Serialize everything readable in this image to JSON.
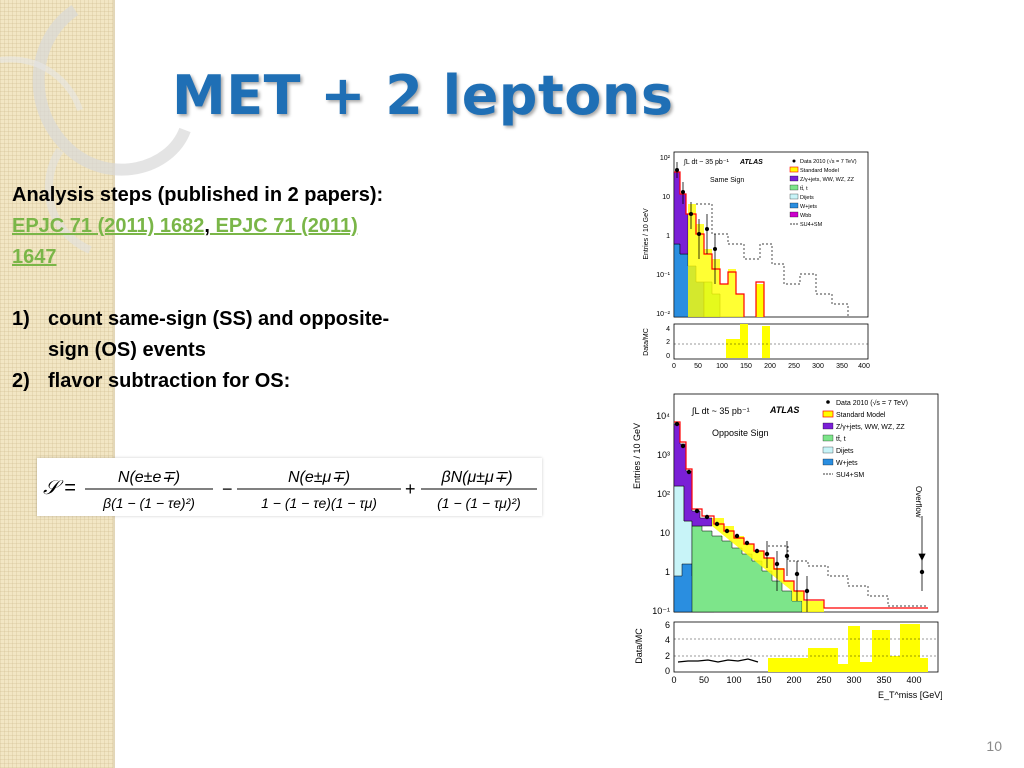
{
  "slide": {
    "title": "MET + 2 leptons",
    "page_number": "10"
  },
  "body": {
    "intro": "Analysis steps (published in 2 papers):",
    "link1": "EPJC 71 (2011) 1682",
    "separator": ",",
    "link2_line1": " EPJC 71 (2011)",
    "link2_line2": "1647",
    "steps": [
      {
        "marker": "1)",
        "line1": "count same-sign (SS) and opposite-",
        "line2": "sign (OS) events"
      },
      {
        "marker": "2)",
        "line1": " flavor subtraction for OS:"
      }
    ]
  },
  "formula": {
    "lhs": "𝒮 =",
    "t1_num": "N(e±e∓)",
    "t1_den": "β(1 − (1 − τe)²)",
    "op1": "−",
    "t2_num": "N(e±μ∓)",
    "t2_den": "1 − (1 − τe)(1 − τμ)",
    "op2": "+",
    "t3_num": "βN(μ±μ∓)",
    "t3_den": "(1 − (1 − τμ)²)"
  },
  "plots": {
    "ss": {
      "lumi": "∫L dt ~ 35 pb⁻¹",
      "experiment": "ATLAS",
      "region": "Same Sign",
      "ylabel": "Entries / 10 GeV",
      "ratio_label": "Data/MC",
      "y_ticks": [
        "10²",
        "10",
        "1",
        "10⁻¹",
        "10⁻²"
      ],
      "ratio_ticks": [
        "4",
        "2",
        "0"
      ],
      "x_ticks": [
        "0",
        "50",
        "100",
        "150",
        "200",
        "250",
        "300",
        "350",
        "400"
      ],
      "legend": [
        "Data 2010 (√s = 7 TeV)",
        "Standard Model",
        "Z/γ+jets, WW, WZ, ZZ",
        "tt̄, t",
        "Dijets",
        "W+jets",
        "Wbb",
        "SU4+SM"
      ]
    },
    "os": {
      "lumi": "∫L dt ~ 35 pb⁻¹",
      "experiment": "ATLAS",
      "region": "Opposite Sign",
      "ylabel": "Entries / 10 GeV",
      "ratio_label": "Data/MC",
      "overflow": "Overflow",
      "y_ticks": [
        "10⁴",
        "10³",
        "10²",
        "10",
        "1",
        "10⁻¹"
      ],
      "ratio_ticks": [
        "6",
        "4",
        "2",
        "0"
      ],
      "x_ticks": [
        "0",
        "50",
        "100",
        "150",
        "200",
        "250",
        "300",
        "350",
        "400"
      ],
      "xlabel": "E_T^miss [GeV]",
      "legend": [
        "Data 2010 (√s = 7 TeV)",
        "Standard Model",
        "Z/γ+jets, WW, WZ, ZZ",
        "tt̄, t",
        "Dijets",
        "W+jets",
        "SU4+SM"
      ]
    }
  },
  "colors": {
    "title": "#1f6fb5",
    "link": "#7ab648",
    "z_jets": "#7a1fd6",
    "ttbar": "#7de58a",
    "dijets": "#c8f4f8",
    "wjets": "#2a8ee0",
    "sm_band": "#ffff00",
    "sm_line": "#ff0000"
  }
}
